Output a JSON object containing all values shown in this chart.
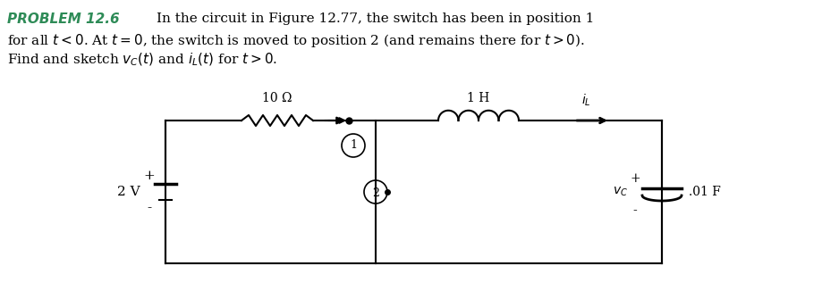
{
  "title_text": "PROBLEM 12.6",
  "title_color": "#2E8B57",
  "body_text": "In the circuit in Figure 12.77, the switch has been in position 1\nfor all $t < 0$. At $t = 0$, the switch is moved to position 2 (and remains there for $t > 0$).\nFind and sketch $v_C(t)$ and $i_L(t)$ for $t > 0$.",
  "body_color": "#000000",
  "resistor_label": "10 Ω",
  "inductor_label": "1 H",
  "capacitor_label": ".01 F",
  "voltage_label": "2 V",
  "iL_label": "$i_L$",
  "vC_label": "$v_C$",
  "switch_pos1": "1",
  "switch_pos2": "2",
  "bg_color": "#ffffff"
}
